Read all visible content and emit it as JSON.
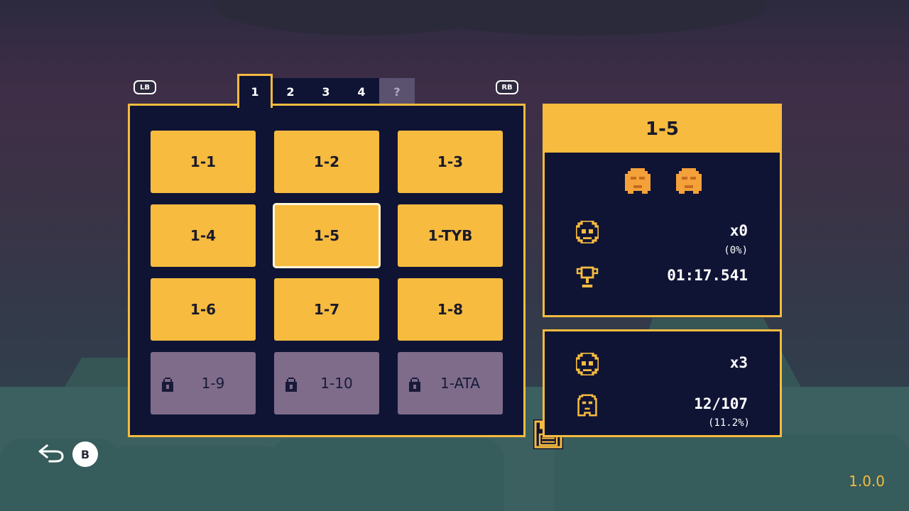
{
  "world_tabs": [
    {
      "label": "1",
      "state": "active"
    },
    {
      "label": "2",
      "state": "unlocked"
    },
    {
      "label": "3",
      "state": "unlocked"
    },
    {
      "label": "4",
      "state": "unlocked"
    },
    {
      "label": "?",
      "state": "locked"
    }
  ],
  "shoulders": {
    "left": "LB",
    "right": "RB"
  },
  "levels": [
    {
      "label": "1-1",
      "state": "unlocked"
    },
    {
      "label": "1-2",
      "state": "unlocked"
    },
    {
      "label": "1-3",
      "state": "unlocked"
    },
    {
      "label": "1-4",
      "state": "unlocked"
    },
    {
      "label": "1-5",
      "state": "selected"
    },
    {
      "label": "1-TYB",
      "state": "unlocked"
    },
    {
      "label": "1-6",
      "state": "unlocked"
    },
    {
      "label": "1-7",
      "state": "unlocked"
    },
    {
      "label": "1-8",
      "state": "unlocked"
    },
    {
      "label": "1-9",
      "state": "locked"
    },
    {
      "label": "1-10",
      "state": "locked"
    },
    {
      "label": "1-ATA",
      "state": "locked"
    }
  ],
  "level_info": {
    "title": "1-5",
    "ghosts_collected": 2,
    "deaths": "x0",
    "deaths_pct": "(0%)",
    "best_time": "01:17.541"
  },
  "world_stats": {
    "deaths": "x3",
    "collectibles": "12/107",
    "collectibles_pct": "(11.2%)"
  },
  "footer": {
    "back_button": "B",
    "version": "1.0.0"
  },
  "colors": {
    "accent": "#f6bb3f",
    "panel": "#0f1435",
    "locked": "#7f6c8a"
  },
  "icons": [
    "lock-icon",
    "skull-icon",
    "trophy-icon",
    "ghost-icon",
    "save-icon",
    "back-arrow-icon"
  ]
}
